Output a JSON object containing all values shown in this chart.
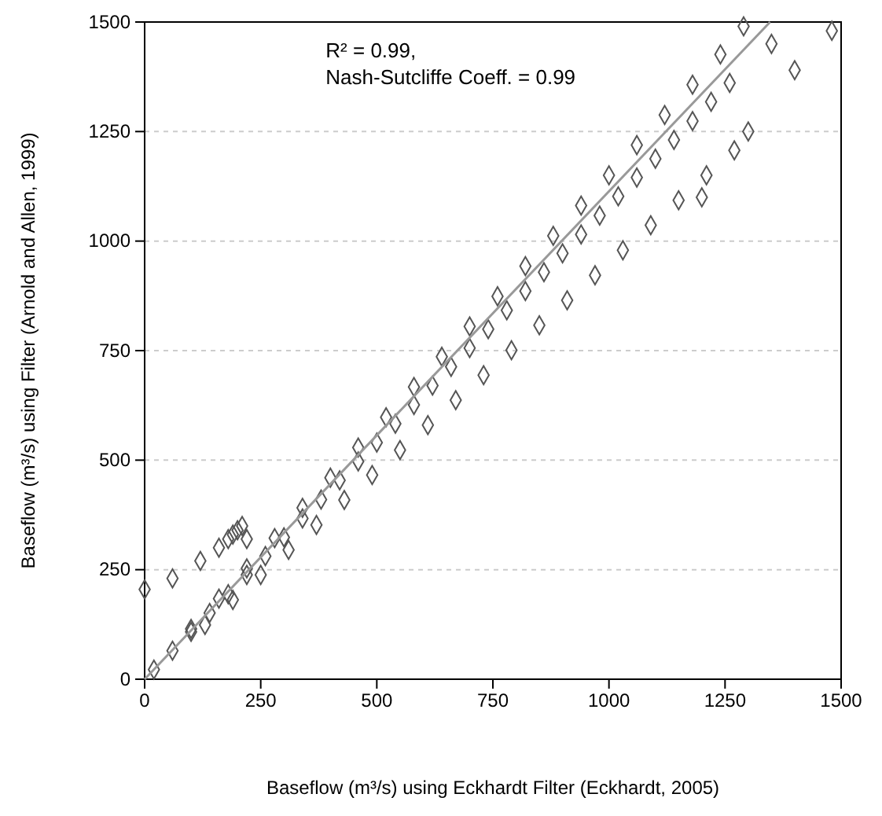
{
  "chart_data": {
    "type": "scatter",
    "xlabel": "Baseflow (m³/s) using Eckhardt Filter (Eckhardt, 2005)",
    "ylabel": "Baseflow (m³/s) using Filter (Arnold and Allen, 1999)",
    "annotations": [
      "R² = 0.99,",
      "Nash-Sutcliffe Coeff. = 0.99"
    ],
    "xlim": [
      0,
      1500
    ],
    "ylim": [
      0,
      1500
    ],
    "xticks": [
      0,
      250,
      500,
      750,
      1000,
      1250,
      1500
    ],
    "yticks": [
      0,
      250,
      500,
      750,
      1000,
      1250,
      1500
    ],
    "grid": "y",
    "marker": "diamond",
    "series": [
      {
        "color": "#555555",
        "x": [
          0,
          60,
          120,
          160,
          180,
          190,
          200,
          210,
          220,
          20,
          60,
          100,
          140,
          180,
          220,
          260,
          300,
          340,
          380,
          420,
          460,
          500,
          540,
          580,
          620,
          660,
          700,
          740,
          780,
          820,
          860,
          900,
          940,
          980,
          1020,
          1060,
          1100,
          1140,
          1180,
          1220,
          1260,
          100,
          160,
          220,
          280,
          340,
          400,
          460,
          520,
          580,
          640,
          700,
          760,
          820,
          880,
          940,
          1000,
          1060,
          1120,
          1180,
          1240,
          130,
          190,
          250,
          310,
          370,
          430,
          490,
          550,
          610,
          670,
          730,
          790,
          850,
          910,
          970,
          1030,
          1090,
          1150,
          1210,
          1270,
          1480,
          1400,
          1350,
          1290,
          1200,
          1300
        ],
        "values": [
          205,
          230,
          270,
          300,
          320,
          330,
          340,
          350,
          320,
          22,
          65,
          108,
          151,
          194,
          238,
          281,
          324,
          367,
          410,
          454,
          497,
          540,
          583,
          626,
          670,
          713,
          756,
          799,
          842,
          886,
          929,
          972,
          1015,
          1058,
          1102,
          1145,
          1188,
          1231,
          1274,
          1318,
          1361,
          115,
          184,
          253,
          322,
          391,
          460,
          529,
          598,
          667,
          736,
          805,
          874,
          943,
          1012,
          1081,
          1150,
          1219,
          1288,
          1357,
          1426,
          124,
          181,
          238,
          295,
          352,
          409,
          466,
          523,
          580,
          637,
          694,
          751,
          808,
          865,
          922,
          979,
          1036,
          1093,
          1150,
          1207,
          1480,
          1390,
          1450,
          1490,
          1100,
          1250
        ]
      },
      {
        "type": "line",
        "color": "#999999",
        "marker": "none",
        "x": [
          0,
          1347
        ],
        "values": [
          0,
          1500
        ]
      }
    ]
  }
}
